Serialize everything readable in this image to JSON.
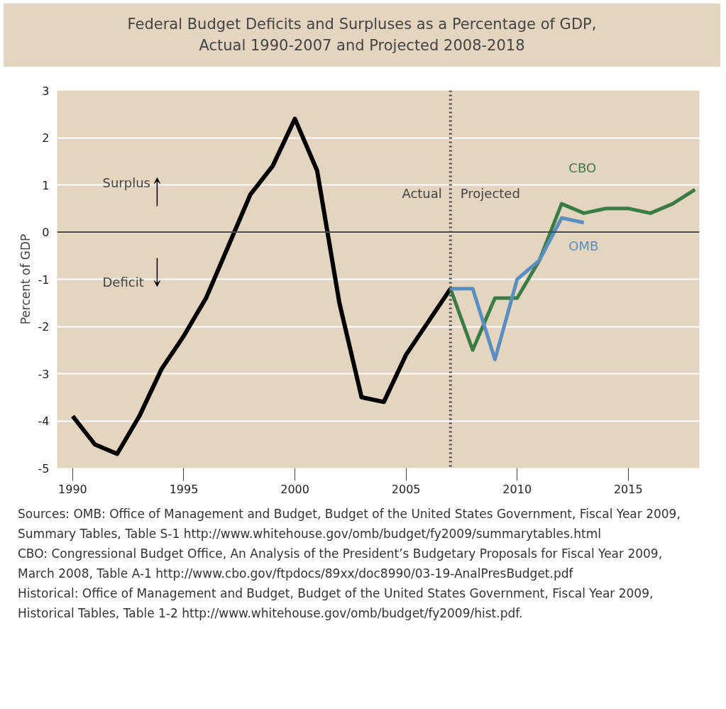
{
  "chart_data": {
    "type": "line",
    "title": "Federal Budget Deficits and Surpluses as a Percentage of GDP,\nActual 1990-2007 and Projected 2008-2018",
    "ylabel": "Percent of GDP",
    "series": [
      {
        "color": "#000000",
        "x": [
          1990,
          1991,
          1992,
          1993,
          1994,
          1995,
          1996,
          1997,
          1998,
          1999,
          2000,
          2001,
          2002,
          2003,
          2004,
          2005,
          2006,
          2007
        ],
        "values": [
          -3.9,
          -4.5,
          -4.7,
          -3.9,
          -2.9,
          -2.2,
          -1.4,
          -0.3,
          0.8,
          1.4,
          2.4,
          1.3,
          -1.5,
          -3.5,
          -3.6,
          -2.6,
          -1.9,
          -1.2
        ]
      },
      {
        "name": "CBO",
        "color": "#3a7d44",
        "x": [
          2007,
          2008,
          2009,
          2010,
          2011,
          2012,
          2013,
          2014,
          2015,
          2016,
          2017,
          2018
        ],
        "values": [
          -1.2,
          -2.5,
          -1.4,
          -1.4,
          -0.6,
          0.6,
          0.4,
          0.5,
          0.5,
          0.4,
          0.6,
          0.9
        ]
      },
      {
        "name": "OMB",
        "color": "#5b8ec0",
        "x": [
          2007,
          2008,
          2009,
          2010,
          2011,
          2012,
          2013
        ],
        "values": [
          -1.2,
          -1.2,
          -2.7,
          -1.0,
          -0.6,
          0.3,
          0.2
        ]
      }
    ],
    "xlim": [
      1989.3,
      2018.2
    ],
    "xticks": [
      1990,
      1995,
      2000,
      2005,
      2010,
      2015
    ],
    "ylim": [
      -5,
      3
    ],
    "yticks": [
      -5,
      -4,
      -3,
      -2,
      -1,
      0,
      1,
      2,
      3
    ],
    "grid": "y",
    "line_style": "solid",
    "marker": "none",
    "ref_lines": [
      {
        "axis": "x",
        "value": 2007,
        "color": "#4a4a4a",
        "line_style": "dotted"
      },
      {
        "axis": "y",
        "value": 0,
        "color": "#4a4a4a",
        "line_style": "solid"
      }
    ],
    "annotations": [
      "Actual",
      "Projected",
      "Surplus",
      "Deficit",
      "Sources: OMB: Office of Management and Budget, Budget of the United States Government, Fiscal Year 2009, Summary Tables, Table S-1 http://www.whitehouse.gov/omb/budget/fy2009/summarytables.html",
      "CBO: Congressional Budget Office, An Analysis of the President’s Budgetary Proposals for Fiscal Year 2009, March 2008, Table A-1 http://www.cbo.gov/ftpdocs/89xx/doc8990/03-19-AnalPresBudget.pdf",
      "Historical: Office of Management and Budget, Budget of the United States Government, Fiscal Year 2009, Historical Tables, Table 1-2 http://www.whitehouse.gov/omb/budget/fy2009/hist.pdf."
    ]
  }
}
